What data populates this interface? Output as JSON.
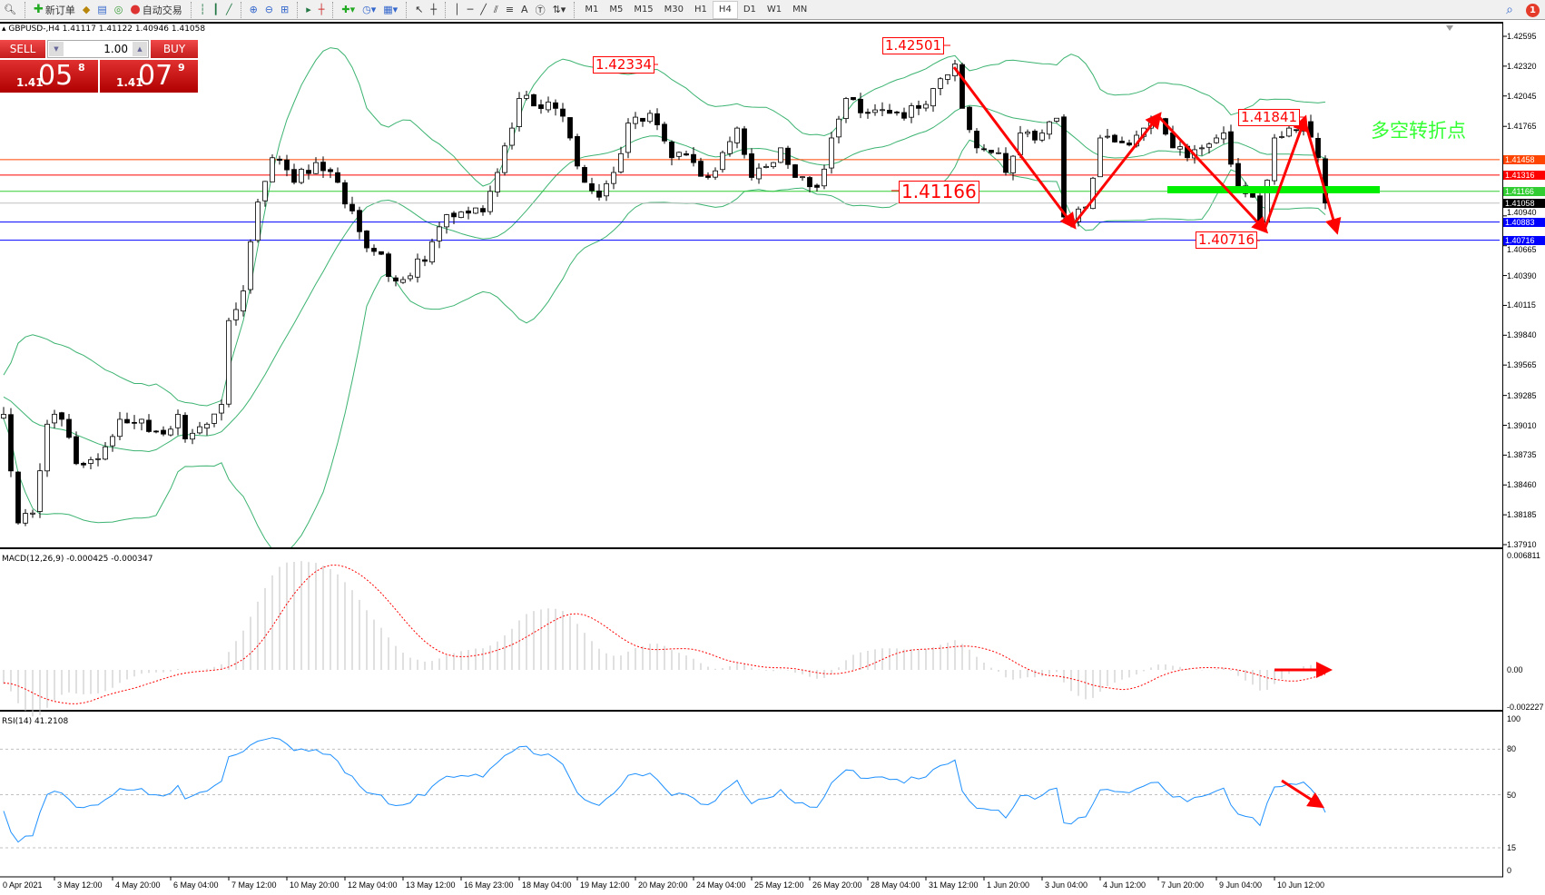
{
  "toolbar": {
    "new_order": "新订单",
    "auto_trading": "自动交易",
    "timeframes": [
      "M1",
      "M5",
      "M15",
      "M30",
      "H1",
      "H4",
      "D1",
      "W1",
      "MN"
    ],
    "active_timeframe": "H4",
    "notification_count": "1",
    "text_tool": "A"
  },
  "chart": {
    "symbol_info": "GBPUSD-,H4  1.41117 1.41122 1.40946 1.41058"
  },
  "trade_panel": {
    "sell_label": "SELL",
    "buy_label": "BUY",
    "lot": "1.00",
    "sell_price": {
      "prefix": "1.41",
      "big": "05",
      "sup": "8"
    },
    "buy_price": {
      "prefix": "1.41",
      "big": "07",
      "sup": "9"
    }
  },
  "price_axis": {
    "ticks": [
      "1.42595",
      "1.42320",
      "1.42045",
      "1.41765",
      "1.40940",
      "1.40665",
      "1.40390",
      "1.40115",
      "1.39840",
      "1.39565",
      "1.39285",
      "1.39010",
      "1.38735",
      "1.38460",
      "1.38185",
      "1.37910"
    ]
  },
  "levels": [
    {
      "value": "1.41458",
      "color": "#ff4500"
    },
    {
      "value": "1.41316",
      "color": "#ff0000"
    },
    {
      "value": "1.41166",
      "color": "#32cd32"
    },
    {
      "value": "1.41058",
      "color": "#000000",
      "line": "#c0c0c0"
    },
    {
      "value": "1.40883",
      "color": "#0000ff"
    },
    {
      "value": "1.40716",
      "color": "#0000ff"
    }
  ],
  "annotations": {
    "labels": [
      "1.42334",
      "1.42501",
      "1.41166",
      "1.41841",
      "1.40716"
    ],
    "text": "多空转折点",
    "color": "#ff0000",
    "text_color": "#33ff33"
  },
  "series": {
    "bar_count": 183,
    "keypoints": [
      [
        0,
        1.39111
      ],
      [
        2,
        1.3811
      ],
      [
        4,
        1.38201
      ],
      [
        6,
        1.3902
      ],
      [
        8,
        1.39065
      ],
      [
        10,
        1.38656
      ],
      [
        13,
        1.38702
      ],
      [
        16,
        1.39065
      ],
      [
        19,
        1.39065
      ],
      [
        22,
        1.38929
      ],
      [
        24,
        1.39111
      ],
      [
        25,
        1.38884
      ],
      [
        28,
        1.3902
      ],
      [
        30,
        1.39202
      ],
      [
        31,
        1.39975
      ],
      [
        33,
        1.40248
      ],
      [
        35,
        1.41067
      ],
      [
        37,
        1.41476
      ],
      [
        40,
        1.41249
      ],
      [
        43,
        1.41431
      ],
      [
        46,
        1.41249
      ],
      [
        49,
        1.40794
      ],
      [
        51,
        1.40612
      ],
      [
        54,
        1.40339
      ],
      [
        58,
        1.40521
      ],
      [
        60,
        1.40839
      ],
      [
        63,
        1.40976
      ],
      [
        66,
        1.40976
      ],
      [
        68,
        1.4134
      ],
      [
        70,
        1.41749
      ],
      [
        71,
        1.42022
      ],
      [
        76,
        1.41931
      ],
      [
        78,
        1.41658
      ],
      [
        80,
        1.41249
      ],
      [
        82,
        1.41112
      ],
      [
        84,
        1.4134
      ],
      [
        86,
        1.41795
      ],
      [
        89,
        1.41885
      ],
      [
        92,
        1.41476
      ],
      [
        95,
        1.41431
      ],
      [
        97,
        1.41294
      ],
      [
        101,
        1.41749
      ],
      [
        103,
        1.41294
      ],
      [
        107,
        1.41567
      ],
      [
        109,
        1.41294
      ],
      [
        112,
        1.41203
      ],
      [
        114,
        1.41658
      ],
      [
        116,
        1.42022
      ],
      [
        119,
        1.41885
      ],
      [
        122,
        1.41885
      ],
      [
        124,
        1.4184
      ],
      [
        126,
        1.41931
      ],
      [
        129,
        1.42204
      ],
      [
        131,
        1.4234
      ],
      [
        132,
        1.41931
      ],
      [
        134,
        1.41567
      ],
      [
        137,
        1.41522
      ],
      [
        138,
        1.4134
      ],
      [
        140,
        1.41704
      ],
      [
        143,
        1.41704
      ],
      [
        145,
        1.4184
      ],
      [
        146,
        1.4093
      ],
      [
        147,
        1.40885
      ],
      [
        149,
        1.41021
      ],
      [
        151,
        1.41658
      ],
      [
        154,
        1.41613
      ],
      [
        157,
        1.41749
      ],
      [
        159,
        1.4184
      ],
      [
        161,
        1.41567
      ],
      [
        163,
        1.41476
      ],
      [
        165,
        1.41567
      ],
      [
        167,
        1.41658
      ],
      [
        168,
        1.41704
      ],
      [
        170,
        1.41203
      ],
      [
        172,
        1.41112
      ],
      [
        173,
        1.40885
      ],
      [
        175,
        1.41658
      ],
      [
        177,
        1.41749
      ],
      [
        179,
        1.41795
      ],
      [
        181,
        1.41476
      ],
      [
        182,
        1.41058
      ]
    ]
  },
  "bands_color": "#3cb371",
  "macd": {
    "label": "MACD(12,26,9) -0.000425 -0.000347",
    "axis": [
      "0.006811",
      "0.00",
      "-0.002227"
    ],
    "signal_color": "#ff0000",
    "hist_color": "#c0c0c0"
  },
  "rsi": {
    "label": "RSI(14) 41.2108",
    "axis": [
      "100",
      "80",
      "50",
      "15",
      "0"
    ],
    "color": "#1e90ff"
  },
  "time_axis": [
    "0 Apr 2021",
    "3 May 12:00",
    "4 May 20:00",
    "6 May 04:00",
    "7 May 12:00",
    "10 May 20:00",
    "12 May 04:00",
    "13 May 12:00",
    "16 May 23:00",
    "18 May 04:00",
    "19 May 12:00",
    "20 May 20:00",
    "24 May 04:00",
    "25 May 12:00",
    "26 May 20:00",
    "28 May 04:00",
    "31 May 12:00",
    "1 Jun 20:00",
    "3 Jun 04:00",
    "4 Jun 12:00",
    "7 Jun 20:00",
    "9 Jun 04:00",
    "10 Jun 12:00"
  ]
}
